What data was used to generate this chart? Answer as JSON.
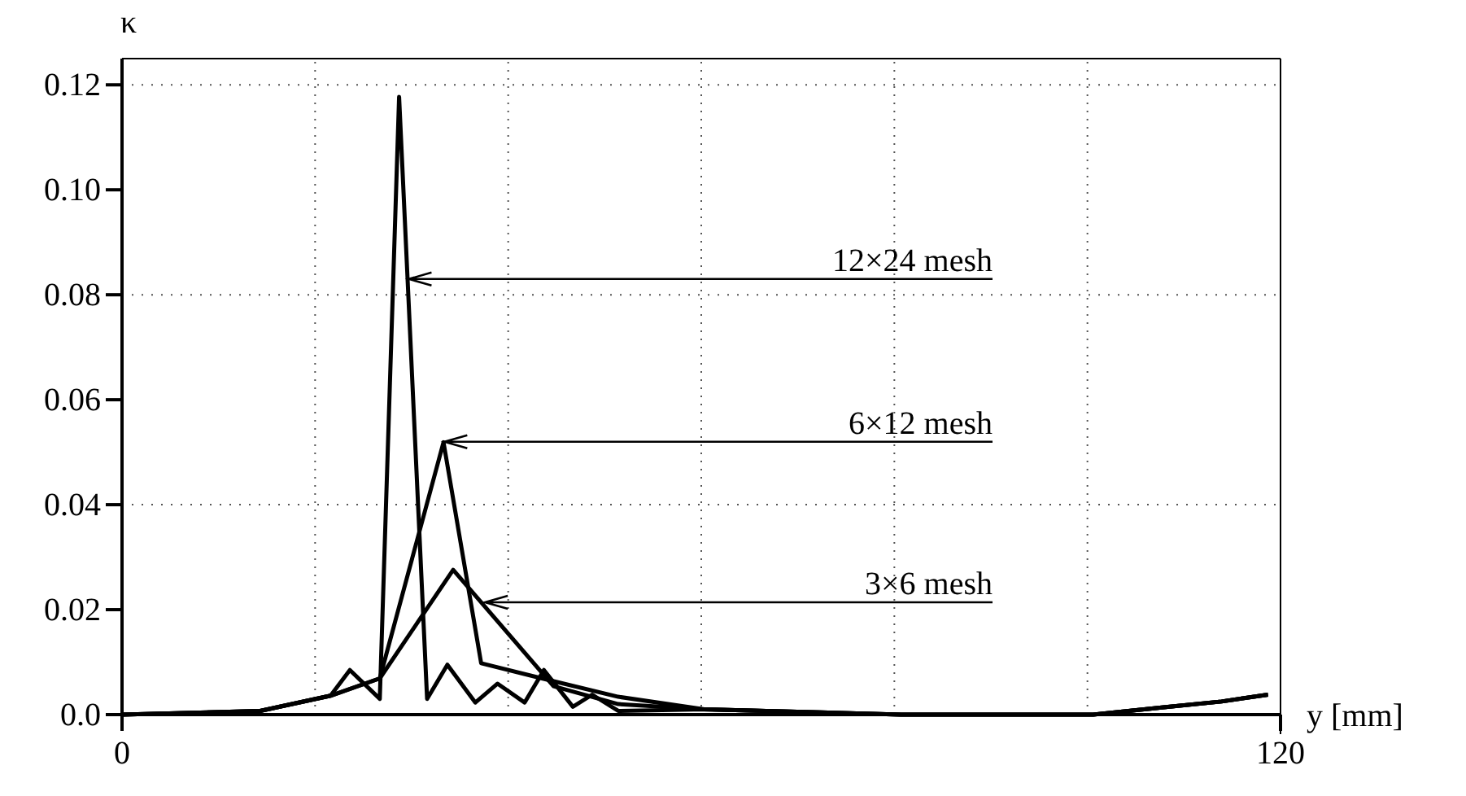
{
  "chart_data": {
    "type": "line",
    "xlabel": "y [mm]",
    "ylabel": "κ",
    "xlim": [
      0,
      120
    ],
    "xticks": [
      0,
      {
        "value": 20,
        "label": null
      },
      {
        "value": 40,
        "label": null
      },
      {
        "value": 60,
        "label": null
      },
      {
        "value": 80,
        "label": null
      },
      {
        "value": 100,
        "label": null
      },
      120
    ],
    "ylim": [
      0,
      0.125
    ],
    "yticks": [
      {
        "value": 0,
        "label": "0.0"
      },
      0.02,
      0.04,
      0.06,
      0.08,
      {
        "value": 0.1,
        "label": "0.10"
      },
      0.12
    ],
    "grid": true,
    "marker": "none",
    "line_style": "solid",
    "annotations": [
      {
        "text": "12×24 mesh",
        "x": 29.7,
        "y": 0.083
      },
      {
        "text": "6×12 mesh",
        "x": 33.4,
        "y": 0.052
      },
      {
        "text": "3×6 mesh",
        "x": 37.6,
        "y": 0.0214
      }
    ],
    "series": [
      {
        "color": "#000000",
        "x": [
          0,
          14.3,
          21.6,
          23.6,
          26.7,
          28.7,
          31.6,
          33.7,
          36.6,
          38.9,
          41.7,
          43.7,
          46.7,
          48.7,
          51.4,
          60.3,
          80.7,
          100.6,
          107.9,
          113.9,
          118.7
        ],
        "values": [
          0,
          0.0007,
          0.0036,
          0.0085,
          0.003,
          0.1177,
          0.003,
          0.0095,
          0.0023,
          0.0059,
          0.0023,
          0.0085,
          0.0015,
          0.0038,
          0.0007,
          0.001,
          0,
          0,
          0.0014,
          0.0025,
          0.0038
        ]
      },
      {
        "color": "#000000",
        "x": [
          0,
          14.3,
          21.6,
          26.7,
          33.3,
          37.2,
          43.5,
          51.4,
          60.3,
          80.7,
          100.6,
          107.9,
          113.9,
          118.7
        ],
        "values": [
          0,
          0.0007,
          0.0036,
          0.0069,
          0.0519,
          0.0098,
          0.0069,
          0.0034,
          0.001,
          0,
          0,
          0.0014,
          0.0025,
          0.0038
        ]
      },
      {
        "color": "#000000",
        "x": [
          0,
          14.3,
          21.6,
          26.7,
          34.3,
          44.7,
          51.4,
          60.3,
          80.7,
          100.6,
          107.9,
          113.9,
          118.7
        ],
        "values": [
          0,
          0.0007,
          0.0036,
          0.0069,
          0.0276,
          0.0054,
          0.002,
          0.001,
          0,
          0,
          0.0014,
          0.0025,
          0.0038
        ]
      }
    ]
  }
}
